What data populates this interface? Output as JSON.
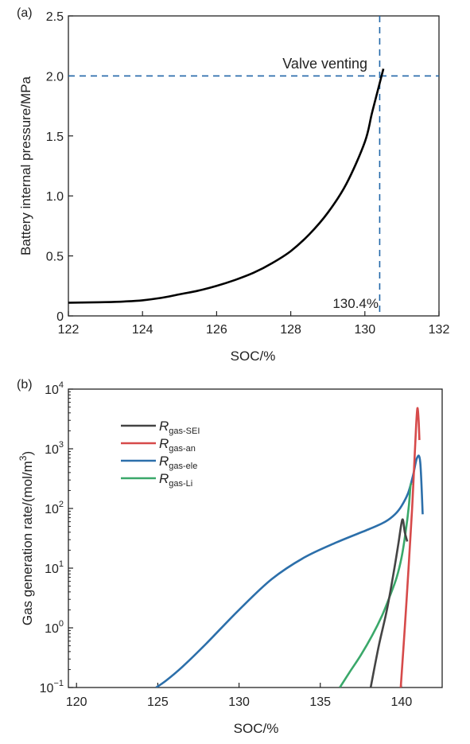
{
  "chart_data": [
    {
      "panel_label": "(a)",
      "type": "line",
      "xlabel": "SOC/%",
      "ylabel": "Battery internal pressure/MPa",
      "xlim": [
        122,
        132
      ],
      "ylim": [
        0,
        2.5
      ],
      "xticks": [
        122,
        124,
        126,
        128,
        130,
        132
      ],
      "yticks": [
        0,
        0.5,
        1.0,
        1.5,
        2.0,
        2.5
      ],
      "ytick_labels": [
        "0",
        "0.5",
        "1.0",
        "1.5",
        "2.0",
        "2.5"
      ],
      "grid": false,
      "series": [
        {
          "color": "#000000",
          "x": [
            122.0,
            123.0,
            123.5,
            124.0,
            124.5,
            125.0,
            125.5,
            126.0,
            126.5,
            127.0,
            127.5,
            128.0,
            128.5,
            129.0,
            129.5,
            130.0,
            130.2,
            130.5
          ],
          "y": [
            0.11,
            0.115,
            0.12,
            0.13,
            0.15,
            0.18,
            0.21,
            0.25,
            0.3,
            0.36,
            0.44,
            0.54,
            0.68,
            0.86,
            1.1,
            1.45,
            1.7,
            2.06
          ]
        }
      ],
      "reference_lines": [
        {
          "orientation": "horizontal",
          "value": 2.0,
          "color": "#2166a8",
          "style": "dashed"
        },
        {
          "orientation": "vertical",
          "value": 130.4,
          "color": "#2166a8",
          "style": "dashed"
        }
      ],
      "annotations": [
        {
          "text": "Valve venting",
          "color": "#2166a8"
        },
        {
          "text": "130.4%",
          "color": "#2166a8"
        }
      ]
    },
    {
      "panel_label": "(b)",
      "type": "line",
      "xlabel": "SOC/%",
      "ylabel": "Gas generation rate/(mol/m",
      "ylabel_sup": "3",
      "ylabel_tail": ")",
      "xlim": [
        119.5,
        142.5
      ],
      "ylim": [
        0.1,
        10000
      ],
      "yscale": "log",
      "xticks": [
        120,
        125,
        130,
        135,
        140
      ],
      "ytick_exponents": [
        -1,
        0,
        1,
        2,
        3,
        4
      ],
      "ytick_base": "10",
      "grid": false,
      "legend_position": "top-left",
      "series": [
        {
          "name": "R",
          "name_sub": "gas-SEI",
          "color": "#444444",
          "x": [
            138.1,
            138.6,
            139.1,
            139.5,
            139.8,
            140.05,
            140.2,
            140.35
          ],
          "y": [
            0.1,
            0.5,
            2.0,
            8.0,
            25.0,
            65.0,
            40.0,
            28.0
          ]
        },
        {
          "name": "R",
          "name_sub": "gas-an",
          "color": "#d64a4a",
          "x": [
            139.95,
            140.2,
            140.45,
            140.65,
            140.8,
            140.9,
            140.98,
            141.05,
            141.1
          ],
          "y": [
            0.1,
            1.0,
            12.0,
            100.0,
            700.0,
            2500.0,
            4800.0,
            3000.0,
            1400.0
          ]
        },
        {
          "name": "R",
          "name_sub": "gas-ele",
          "color": "#2c6faa",
          "x": [
            124.9,
            125.5,
            126.5,
            128.0,
            130.0,
            132.0,
            134.0,
            136.0,
            138.0,
            139.0,
            139.6,
            140.0,
            140.4,
            140.7,
            140.95,
            141.15,
            141.3
          ],
          "y": [
            0.1,
            0.13,
            0.22,
            0.55,
            2.0,
            6.5,
            15.0,
            27.0,
            45.0,
            60.0,
            80.0,
            110.0,
            180.0,
            350.0,
            700.0,
            600.0,
            80.0
          ]
        },
        {
          "name": "R",
          "name_sub": "gas-Li",
          "color": "#3aa86a",
          "x": [
            136.2,
            136.8,
            137.5,
            138.2,
            138.8,
            139.3,
            139.7,
            140.0,
            140.25,
            140.45,
            140.55,
            140.62
          ],
          "y": [
            0.1,
            0.18,
            0.35,
            0.75,
            1.6,
            3.5,
            7.0,
            15.0,
            40.0,
            110.0,
            240.0,
            260.0
          ]
        }
      ]
    }
  ]
}
